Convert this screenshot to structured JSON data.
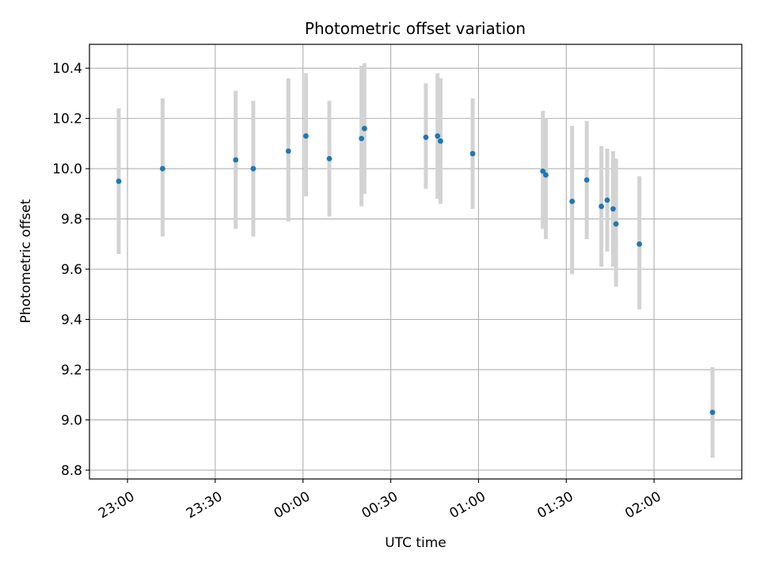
{
  "chart_data": {
    "type": "scatter",
    "title": "Photometric offset variation",
    "xlabel": "UTC time",
    "ylabel": "Photometric offset",
    "xlim": [
      "22:47",
      "02:30"
    ],
    "ylim": [
      8.765,
      10.495
    ],
    "grid": true,
    "xticks": [
      {
        "time": "23:00",
        "label": "23:00"
      },
      {
        "time": "23:30",
        "label": "23:30"
      },
      {
        "time": "00:00",
        "label": "00:00"
      },
      {
        "time": "00:30",
        "label": "00:30"
      },
      {
        "time": "01:00",
        "label": "01:00"
      },
      {
        "time": "01:30",
        "label": "01:30"
      },
      {
        "time": "02:00",
        "label": "02:00"
      }
    ],
    "yticks": [
      {
        "value": 8.8,
        "label": "8.8"
      },
      {
        "value": 9.0,
        "label": "9.0"
      },
      {
        "value": 9.2,
        "label": "9.2"
      },
      {
        "value": 9.4,
        "label": "9.4"
      },
      {
        "value": 9.6,
        "label": "9.6"
      },
      {
        "value": 9.8,
        "label": "9.8"
      },
      {
        "value": 10.0,
        "label": "10.0"
      },
      {
        "value": 10.2,
        "label": "10.2"
      },
      {
        "value": 10.4,
        "label": "10.4"
      }
    ],
    "points": [
      {
        "t": "22:57",
        "y": 9.95,
        "low": 9.66,
        "high": 10.24
      },
      {
        "t": "23:12",
        "y": 10.0,
        "low": 9.73,
        "high": 10.28
      },
      {
        "t": "23:37",
        "y": 10.035,
        "low": 9.76,
        "high": 10.31
      },
      {
        "t": "23:43",
        "y": 10.0,
        "low": 9.73,
        "high": 10.27
      },
      {
        "t": "23:55",
        "y": 10.07,
        "low": 9.79,
        "high": 10.36
      },
      {
        "t": "00:01",
        "y": 10.13,
        "low": 9.89,
        "high": 10.38
      },
      {
        "t": "00:09",
        "y": 10.04,
        "low": 9.81,
        "high": 10.27
      },
      {
        "t": "00:20",
        "y": 10.12,
        "low": 9.85,
        "high": 10.41
      },
      {
        "t": "00:21",
        "y": 10.16,
        "low": 9.9,
        "high": 10.42
      },
      {
        "t": "00:42",
        "y": 10.125,
        "low": 9.92,
        "high": 10.34
      },
      {
        "t": "00:46",
        "y": 10.13,
        "low": 9.88,
        "high": 10.38
      },
      {
        "t": "00:47",
        "y": 10.11,
        "low": 9.86,
        "high": 10.36
      },
      {
        "t": "00:58",
        "y": 10.06,
        "low": 9.84,
        "high": 10.28
      },
      {
        "t": "01:22",
        "y": 9.99,
        "low": 9.76,
        "high": 10.23
      },
      {
        "t": "01:23",
        "y": 9.975,
        "low": 9.72,
        "high": 10.2
      },
      {
        "t": "01:32",
        "y": 9.87,
        "low": 9.58,
        "high": 10.17
      },
      {
        "t": "01:37",
        "y": 9.955,
        "low": 9.72,
        "high": 10.19
      },
      {
        "t": "01:42",
        "y": 9.85,
        "low": 9.61,
        "high": 10.09
      },
      {
        "t": "01:44",
        "y": 9.875,
        "low": 9.67,
        "high": 10.08
      },
      {
        "t": "01:46",
        "y": 9.84,
        "low": 9.61,
        "high": 10.07
      },
      {
        "t": "01:47",
        "y": 9.78,
        "low": 9.53,
        "high": 10.04
      },
      {
        "t": "01:55",
        "y": 9.7,
        "low": 9.44,
        "high": 9.97
      },
      {
        "t": "02:20",
        "y": 9.03,
        "low": 8.85,
        "high": 9.21
      }
    ],
    "colors": {
      "marker": "#1f77b4",
      "errorbar": "#d3d3d3",
      "grid": "#b0b0b0",
      "axes": "#000000"
    }
  }
}
